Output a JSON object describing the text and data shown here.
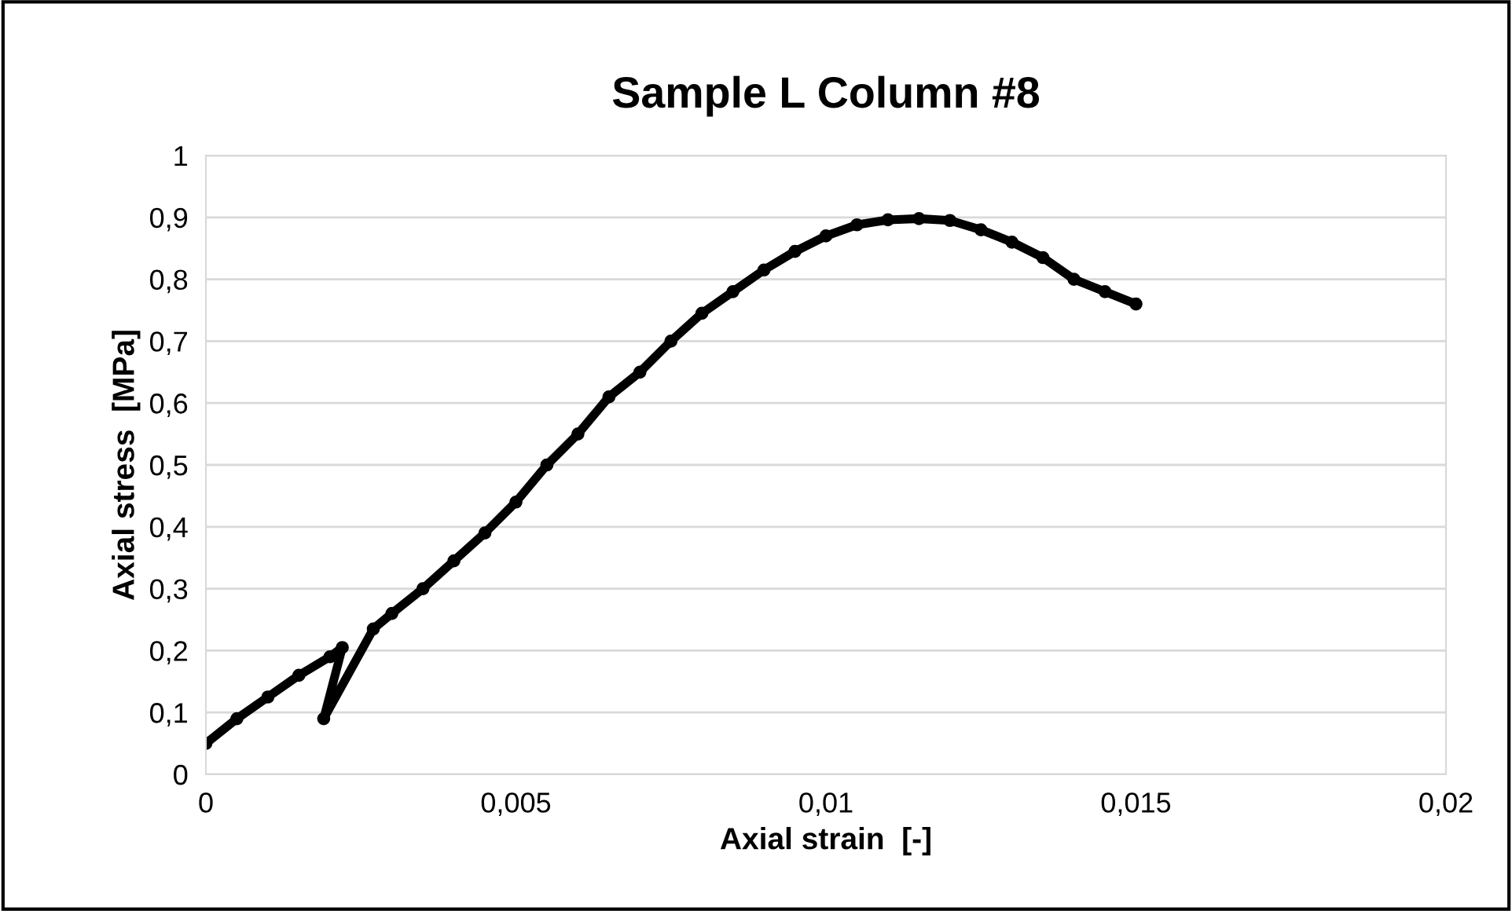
{
  "chart_data": {
    "type": "line",
    "title": "Sample L Column #8",
    "xlabel": "Axial strain  [-]",
    "ylabel": "Axial stress  [MPa]",
    "series": [
      {
        "color": "#000000",
        "marker": "circle",
        "line_style": "solid",
        "x": [
          0,
          0.0005,
          0.001,
          0.0015,
          0.002,
          0.0022,
          0.0019,
          0.0027,
          0.003,
          0.0035,
          0.004,
          0.0045,
          0.005,
          0.0055,
          0.006,
          0.0065,
          0.007,
          0.0075,
          0.008,
          0.0085,
          0.009,
          0.0095,
          0.01,
          0.0105,
          0.011,
          0.0115,
          0.012,
          0.0125,
          0.013,
          0.0135,
          0.014,
          0.0145,
          0.015
        ],
        "values": [
          0.05,
          0.09,
          0.125,
          0.16,
          0.19,
          0.205,
          0.09,
          0.235,
          0.26,
          0.3,
          0.345,
          0.39,
          0.44,
          0.5,
          0.55,
          0.61,
          0.65,
          0.7,
          0.745,
          0.78,
          0.815,
          0.845,
          0.87,
          0.888,
          0.896,
          0.898,
          0.895,
          0.88,
          0.86,
          0.835,
          0.8,
          0.78,
          0.76
        ]
      }
    ],
    "xlim": [
      0,
      0.02
    ],
    "ylim": [
      0,
      1
    ],
    "xticks": [
      0,
      {
        "value": 0.005,
        "label": "0,005"
      },
      {
        "value": 0.01,
        "label": "0,01"
      },
      {
        "value": 0.015,
        "label": "0,015"
      },
      {
        "value": 0.02,
        "label": "0,02"
      }
    ],
    "yticks": [
      0,
      {
        "value": 0.1,
        "label": "0,1"
      },
      {
        "value": 0.2,
        "label": "0,2"
      },
      {
        "value": 0.3,
        "label": "0,3"
      },
      {
        "value": 0.4,
        "label": "0,4"
      },
      {
        "value": 0.5,
        "label": "0,5"
      },
      {
        "value": 0.6,
        "label": "0,6"
      },
      {
        "value": 0.7,
        "label": "0,7"
      },
      {
        "value": 0.8,
        "label": "0,8"
      },
      {
        "value": 0.9,
        "label": "0,9"
      },
      1
    ],
    "grid": true,
    "legend": false
  }
}
